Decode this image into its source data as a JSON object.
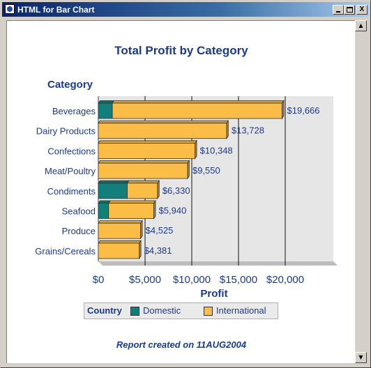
{
  "window": {
    "title": "HTML for Bar Chart",
    "minimize_label": "",
    "maximize_label": "",
    "close_label": "X"
  },
  "report": {
    "title": "Total Profit by Category",
    "category_heading": "Category",
    "footer": "Report created on 11AUG2004"
  },
  "legend": {
    "title": "Country",
    "items": [
      {
        "label": "Domestic",
        "color": "#127f7b"
      },
      {
        "label": "International",
        "color": "#fbbd45"
      }
    ]
  },
  "colors": {
    "domestic": "#127f7b",
    "international": "#fbbd45",
    "text": "#1a3a8a",
    "plot_bg": "#e6e6e6"
  },
  "chart_data": {
    "type": "bar",
    "orientation": "horizontal",
    "stacked": true,
    "title": "Total Profit by Category",
    "xlabel": "Profit",
    "ylabel": "Category",
    "xlim": [
      0,
      25000
    ],
    "x_ticks": [
      0,
      5000,
      10000,
      15000,
      20000
    ],
    "x_tick_labels": [
      "$0",
      "$5,000",
      "$10,000",
      "$15,000",
      "$20,000"
    ],
    "grid": true,
    "legend_position": "bottom",
    "categories": [
      "Beverages",
      "Dairy Products",
      "Confections",
      "Meat/Poultry",
      "Condiments",
      "Seafood",
      "Produce",
      "Grains/Cereals"
    ],
    "series": [
      {
        "name": "Domestic",
        "values": [
          1500,
          0,
          0,
          0,
          3100,
          1100,
          0,
          0
        ]
      },
      {
        "name": "International",
        "values": [
          18166,
          13728,
          10348,
          9550,
          3230,
          4840,
          4525,
          4381
        ]
      }
    ],
    "totals": [
      19666,
      13728,
      10348,
      9550,
      6330,
      5940,
      4525,
      4381
    ],
    "total_labels": [
      "$19,666",
      "$13,728",
      "$10,348",
      "$9,550",
      "$6,330",
      "$5,940",
      "$4,525",
      "$4,381"
    ]
  }
}
